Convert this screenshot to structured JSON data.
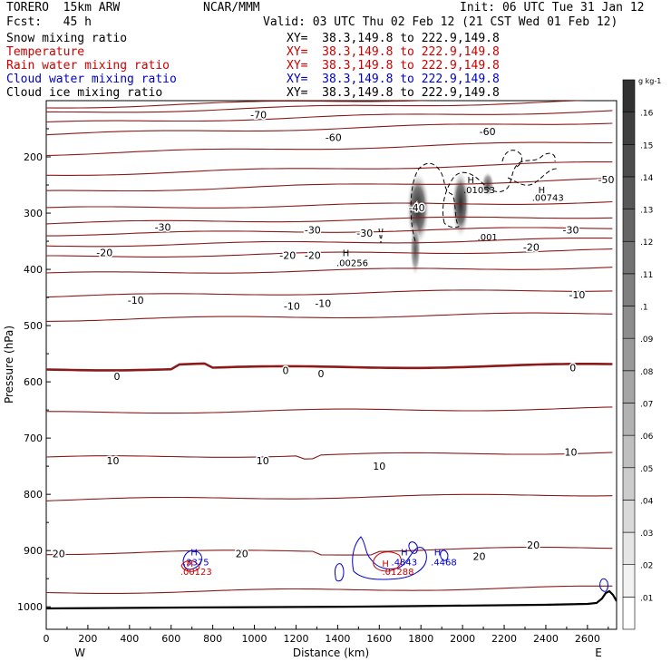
{
  "header": {
    "model": "TORERO  15km ARW",
    "org": "NCAR/MMM",
    "init": "Init: 06 UTC Tue 31 Jan 12",
    "fcst": "Fcst:   45 h",
    "valid": "Valid: 03 UTC Thu 02 Feb 12 (21 CST Wed 01 Feb 12)"
  },
  "fields": [
    {
      "name": "Snow mixing ratio",
      "xy": "XY=  38.3,149.8 to 222.9,149.8",
      "color": "#000000"
    },
    {
      "name": "Temperature",
      "xy": "XY=  38.3,149.8 to 222.9,149.8",
      "color": "#cc0000"
    },
    {
      "name": "Rain water mixing ratio",
      "xy": "XY=  38.3,149.8 to 222.9,149.8",
      "color": "#cc0000"
    },
    {
      "name": "Cloud water mixing ratio",
      "xy": "XY=  38.3,149.8 to 222.9,149.8",
      "color": "#0000cc"
    },
    {
      "name": "Cloud ice mixing ratio",
      "xy": "XY=  38.3,149.8 to 222.9,149.8",
      "color": "#000000"
    }
  ],
  "chart_data": {
    "type": "cross-section contour",
    "xlabel": "Distance (km)",
    "ylabel": "Pressure (hPa)",
    "xlim": [
      0,
      2740
    ],
    "ylim": [
      1040,
      100
    ],
    "x_ticks": [
      "0",
      "200",
      "400",
      "600",
      "800",
      "1000",
      "1200",
      "1400",
      "1600",
      "1800",
      "2000",
      "2200",
      "2400",
      "2600"
    ],
    "y_ticks": [
      "200",
      "300",
      "400",
      "500",
      "600",
      "700",
      "800",
      "900",
      "1000"
    ],
    "left_end_label": "W",
    "right_end_label": "E",
    "colorbar": {
      "units": "g kg-1",
      "labels": [
        ".01",
        ".02",
        ".03",
        ".04",
        ".05",
        ".06",
        ".07",
        ".08",
        ".09",
        ".1",
        ".11",
        ".12",
        ".13",
        ".14",
        ".15",
        ".16"
      ]
    },
    "temperature_contour_labels": [
      {
        "text": "-70",
        "x": 1020,
        "p": 125
      },
      {
        "text": "-60",
        "x": 1380,
        "p": 165
      },
      {
        "text": "-60",
        "x": 2120,
        "p": 155
      },
      {
        "text": "-50",
        "x": 2690,
        "p": 240
      },
      {
        "text": "-40",
        "x": 1780,
        "p": 290
      },
      {
        "text": "-30",
        "x": 560,
        "p": 325
      },
      {
        "text": "-30",
        "x": 1280,
        "p": 330
      },
      {
        "text": "-30",
        "x": 1530,
        "p": 335
      },
      {
        "text": "-30",
        "x": 2520,
        "p": 330
      },
      {
        "text": "-20",
        "x": 280,
        "p": 370
      },
      {
        "text": "-20",
        "x": 1160,
        "p": 375
      },
      {
        "text": "-20",
        "x": 1280,
        "p": 375
      },
      {
        "text": "-20",
        "x": 2330,
        "p": 360
      },
      {
        "text": "-10",
        "x": 430,
        "p": 455
      },
      {
        "text": "-10",
        "x": 1180,
        "p": 465
      },
      {
        "text": "-10",
        "x": 1330,
        "p": 460
      },
      {
        "text": "-10",
        "x": 2550,
        "p": 445
      },
      {
        "text": "0",
        "x": 340,
        "p": 590
      },
      {
        "text": "0",
        "x": 1150,
        "p": 580
      },
      {
        "text": "0",
        "x": 1320,
        "p": 585
      },
      {
        "text": "0",
        "x": 2530,
        "p": 575
      },
      {
        "text": "10",
        "x": 320,
        "p": 740
      },
      {
        "text": "10",
        "x": 1040,
        "p": 740
      },
      {
        "text": "10",
        "x": 1600,
        "p": 750
      },
      {
        "text": "10",
        "x": 2520,
        "p": 725
      },
      {
        "text": "20",
        "x": 60,
        "p": 905
      },
      {
        "text": "20",
        "x": 940,
        "p": 905
      },
      {
        "text": "20",
        "x": 2080,
        "p": 910
      },
      {
        "text": "20",
        "x": 2340,
        "p": 890
      }
    ],
    "extrema_labels": [
      {
        "text": "H",
        "x": 1440,
        "p": 370,
        "color": "#000000"
      },
      {
        "text": ".00256",
        "x": 1470,
        "p": 388,
        "color": "#000000"
      },
      {
        "text": "H",
        "x": 2040,
        "p": 240,
        "color": "#000000"
      },
      {
        "text": ".01053",
        "x": 2080,
        "p": 258,
        "color": "#000000"
      },
      {
        "text": "H",
        "x": 2380,
        "p": 258,
        "color": "#000000"
      },
      {
        "text": ".00743",
        "x": 2410,
        "p": 272,
        "color": "#000000"
      },
      {
        "text": ".001",
        "x": 2120,
        "p": 342,
        "color": "#000000"
      },
      {
        "text": "H",
        "x": 710,
        "p": 902,
        "color": "#0000cc"
      },
      {
        "text": ".3375",
        "x": 720,
        "p": 920,
        "color": "#0000cc"
      },
      {
        "text": "H",
        "x": 690,
        "p": 922,
        "color": "#cc0000"
      },
      {
        "text": ".00123",
        "x": 720,
        "p": 937,
        "color": "#cc0000"
      },
      {
        "text": "H",
        "x": 1720,
        "p": 902,
        "color": "#0000cc"
      },
      {
        "text": ".4843",
        "x": 1720,
        "p": 920,
        "color": "#0000cc"
      },
      {
        "text": "H",
        "x": 1630,
        "p": 922,
        "color": "#cc0000"
      },
      {
        "text": ".01288",
        "x": 1690,
        "p": 937,
        "color": "#cc0000"
      },
      {
        "text": "H",
        "x": 1880,
        "p": 902,
        "color": "#0000cc"
      },
      {
        "text": ".4468",
        "x": 1910,
        "p": 920,
        "color": "#0000cc"
      }
    ]
  }
}
